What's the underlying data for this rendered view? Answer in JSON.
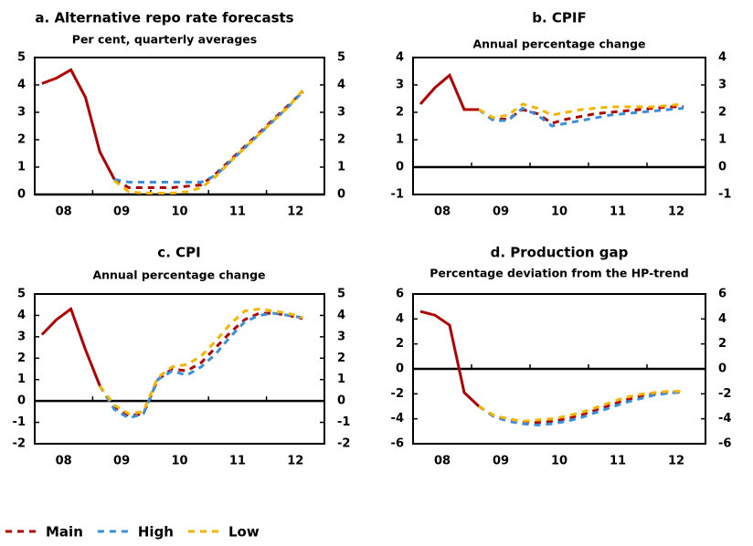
{
  "chart_data": [
    {
      "type": "line",
      "title": "a. Alternative repo rate forecasts",
      "subtitle": "Per cent, quarterly averages",
      "categories": [
        null,
        "08",
        null,
        null,
        null,
        "09",
        null,
        null,
        null,
        "10",
        null,
        null,
        null,
        "11",
        null,
        null,
        null,
        "12",
        null,
        null
      ],
      "ylim": [
        0,
        5
      ],
      "yticks": [
        0,
        1,
        2,
        3,
        4,
        5
      ],
      "y2lim": [
        0,
        5
      ],
      "y2ticks": [
        0,
        1,
        2,
        3,
        4,
        5
      ],
      "series": [
        {
          "color": "#b30000",
          "line_style": "solid",
          "values": [
            4.05,
            4.25,
            4.55,
            3.55,
            1.55,
            0.55,
            null,
            null,
            null,
            null,
            null,
            null,
            null,
            null,
            null,
            null,
            null,
            null,
            null,
            null
          ]
        },
        {
          "name": "Main",
          "color": "#b30000",
          "line_style": "dashed",
          "values": [
            null,
            null,
            null,
            null,
            null,
            0.55,
            0.25,
            0.25,
            0.25,
            0.25,
            0.3,
            0.35,
            0.75,
            1.25,
            1.75,
            2.25,
            2.75,
            3.25,
            3.75,
            null
          ]
        },
        {
          "name": "High",
          "color": "#3a8fd9",
          "line_style": "dashed",
          "values": [
            null,
            null,
            null,
            null,
            null,
            0.55,
            0.45,
            0.45,
            0.45,
            0.45,
            0.45,
            0.45,
            0.7,
            1.2,
            1.7,
            2.2,
            2.7,
            3.2,
            3.75,
            null
          ]
        },
        {
          "name": "Low",
          "color": "#f5b400",
          "line_style": "dashed",
          "values": [
            null,
            null,
            null,
            null,
            null,
            0.5,
            0.1,
            0.05,
            0.05,
            0.05,
            0.1,
            0.25,
            0.65,
            1.2,
            1.7,
            2.2,
            2.7,
            3.2,
            3.8,
            null
          ]
        }
      ]
    },
    {
      "type": "line",
      "title": "b. CPIF",
      "subtitle": "Annual percentage change",
      "categories": [
        null,
        "08",
        null,
        null,
        null,
        "09",
        null,
        null,
        null,
        "10",
        null,
        null,
        null,
        "11",
        null,
        null,
        null,
        "12",
        null,
        null
      ],
      "ylim": [
        -1,
        4
      ],
      "yticks": [
        -1,
        0,
        1,
        2,
        3,
        4
      ],
      "y2lim": [
        -1,
        4
      ],
      "y2ticks": [
        -1,
        0,
        1,
        2,
        3,
        4
      ],
      "series": [
        {
          "color": "#b30000",
          "line_style": "solid",
          "values": [
            2.3,
            2.9,
            3.35,
            2.1,
            2.1,
            null,
            null,
            null,
            null,
            null,
            null,
            null,
            null,
            null,
            null,
            null,
            null,
            null,
            null,
            null
          ]
        },
        {
          "color": "#b30000",
          "line_style": "dashed",
          "values": [
            null,
            null,
            null,
            null,
            2.1,
            1.75,
            1.75,
            2.1,
            1.95,
            1.6,
            1.75,
            1.85,
            1.95,
            2.0,
            2.05,
            2.1,
            2.15,
            2.2,
            2.2,
            null
          ]
        },
        {
          "color": "#3a8fd9",
          "line_style": "dashed",
          "values": [
            null,
            null,
            null,
            null,
            2.1,
            1.7,
            1.7,
            2.15,
            1.9,
            1.5,
            1.6,
            1.7,
            1.8,
            1.9,
            1.95,
            2.0,
            2.05,
            2.1,
            2.15,
            null
          ]
        },
        {
          "color": "#f5b400",
          "line_style": "dashed",
          "values": [
            null,
            null,
            null,
            null,
            2.1,
            1.8,
            1.9,
            2.3,
            2.15,
            1.9,
            2.0,
            2.1,
            2.15,
            2.2,
            2.2,
            2.2,
            2.2,
            2.25,
            2.3,
            null
          ]
        }
      ]
    },
    {
      "type": "line",
      "title": "c. CPI",
      "subtitle": "Annual percentage change",
      "categories": [
        null,
        "08",
        null,
        null,
        null,
        "09",
        null,
        null,
        null,
        "10",
        null,
        null,
        null,
        "11",
        null,
        null,
        null,
        "12",
        null,
        null
      ],
      "ylim": [
        -2,
        5
      ],
      "yticks": [
        -2,
        -1,
        0,
        1,
        2,
        3,
        4,
        5
      ],
      "y2lim": [
        -2,
        5
      ],
      "y2ticks": [
        -2,
        -1,
        0,
        1,
        2,
        3,
        4,
        5
      ],
      "series": [
        {
          "color": "#b30000",
          "line_style": "solid",
          "values": [
            3.1,
            3.8,
            4.3,
            2.4,
            0.7,
            null,
            null,
            null,
            null,
            null,
            null,
            null,
            null,
            null,
            null,
            null,
            null,
            null,
            null,
            null
          ]
        },
        {
          "color": "#b30000",
          "line_style": "dashed",
          "values": [
            null,
            null,
            null,
            null,
            0.7,
            -0.3,
            -0.7,
            -0.6,
            1.0,
            1.5,
            1.4,
            1.8,
            2.5,
            3.2,
            3.8,
            4.1,
            4.1,
            4.0,
            3.85,
            null
          ]
        },
        {
          "color": "#3a8fd9",
          "line_style": "dashed",
          "values": [
            null,
            null,
            null,
            null,
            0.7,
            -0.4,
            -0.8,
            -0.6,
            1.0,
            1.4,
            1.2,
            1.6,
            2.2,
            3.0,
            3.7,
            4.0,
            4.1,
            4.0,
            3.9,
            null
          ]
        },
        {
          "color": "#f5b400",
          "line_style": "dashed",
          "values": [
            null,
            null,
            null,
            null,
            0.7,
            -0.2,
            -0.6,
            -0.5,
            1.1,
            1.6,
            1.7,
            2.1,
            2.8,
            3.6,
            4.2,
            4.3,
            4.2,
            4.1,
            3.9,
            null
          ]
        }
      ]
    },
    {
      "type": "line",
      "title": "d. Production gap",
      "subtitle": "Percentage deviation from the HP-trend",
      "categories": [
        null,
        "08",
        null,
        null,
        null,
        "09",
        null,
        null,
        null,
        "10",
        null,
        null,
        null,
        "11",
        null,
        null,
        null,
        "12",
        null,
        null
      ],
      "ylim": [
        -6,
        6
      ],
      "yticks": [
        -6,
        -4,
        -2,
        0,
        2,
        4,
        6
      ],
      "y2lim": [
        -6,
        6
      ],
      "y2ticks": [
        -6,
        -4,
        -2,
        0,
        2,
        4,
        6
      ],
      "series": [
        {
          "color": "#b30000",
          "line_style": "solid",
          "values": [
            4.6,
            4.3,
            3.5,
            -1.9,
            -3.0,
            null,
            null,
            null,
            null,
            null,
            null,
            null,
            null,
            null,
            null,
            null,
            null,
            null,
            null,
            null
          ]
        },
        {
          "color": "#b30000",
          "line_style": "dashed",
          "values": [
            null,
            null,
            null,
            null,
            -3.0,
            -3.8,
            -4.1,
            -4.3,
            -4.3,
            -4.2,
            -4.0,
            -3.7,
            -3.3,
            -2.9,
            -2.5,
            -2.2,
            -2.0,
            -1.9,
            -1.85,
            null
          ]
        },
        {
          "color": "#3a8fd9",
          "line_style": "dashed",
          "values": [
            null,
            null,
            null,
            null,
            -3.0,
            -3.8,
            -4.2,
            -4.4,
            -4.5,
            -4.4,
            -4.2,
            -3.9,
            -3.5,
            -3.1,
            -2.7,
            -2.4,
            -2.1,
            -1.95,
            -1.85,
            null
          ]
        },
        {
          "color": "#f5b400",
          "line_style": "dashed",
          "values": [
            null,
            null,
            null,
            null,
            -3.0,
            -3.7,
            -4.0,
            -4.2,
            -4.1,
            -4.0,
            -3.8,
            -3.5,
            -3.1,
            -2.7,
            -2.3,
            -2.05,
            -1.9,
            -1.8,
            -1.8,
            null
          ]
        }
      ]
    }
  ]
}
